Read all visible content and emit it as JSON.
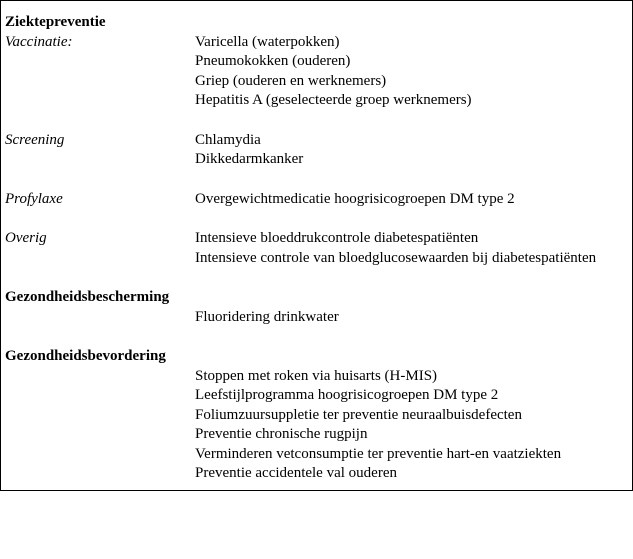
{
  "section1": {
    "title": "Ziektepreventie",
    "vaccinatie": {
      "label": "Vaccinatie:",
      "items": [
        "Varicella (waterpokken)",
        "Pneumokokken (ouderen)",
        "Griep (ouderen en werknemers)",
        "Hepatitis A (geselecteerde groep werknemers)"
      ]
    },
    "screening": {
      "label": "Screening",
      "items": [
        "Chlamydia",
        "Dikkedarmkanker"
      ]
    },
    "profylaxe": {
      "label": "Profylaxe",
      "items": [
        "Overgewichtmedicatie hoogrisicogroepen DM type 2"
      ]
    },
    "overig": {
      "label": "Overig",
      "items": [
        "Intensieve bloeddrukcontrole diabetespatiënten",
        "Intensieve controle van bloedglucosewaarden bij diabetespatiënten"
      ]
    }
  },
  "section2": {
    "title": "Gezondheidsbescherming",
    "items": [
      "Fluoridering drinkwater"
    ]
  },
  "section3": {
    "title": "Gezondheidsbevordering",
    "items": [
      "Stoppen met roken via huisarts (H-MIS)",
      "Leefstijlprogramma hoogrisicogroepen DM type 2",
      "Foliumzuursuppletie ter preventie neuraalbuisdefecten",
      "Preventie chronische rugpijn",
      "Verminderen vetconsumptie ter preventie hart-en vaatziekten",
      "Preventie accidentele val ouderen"
    ]
  }
}
